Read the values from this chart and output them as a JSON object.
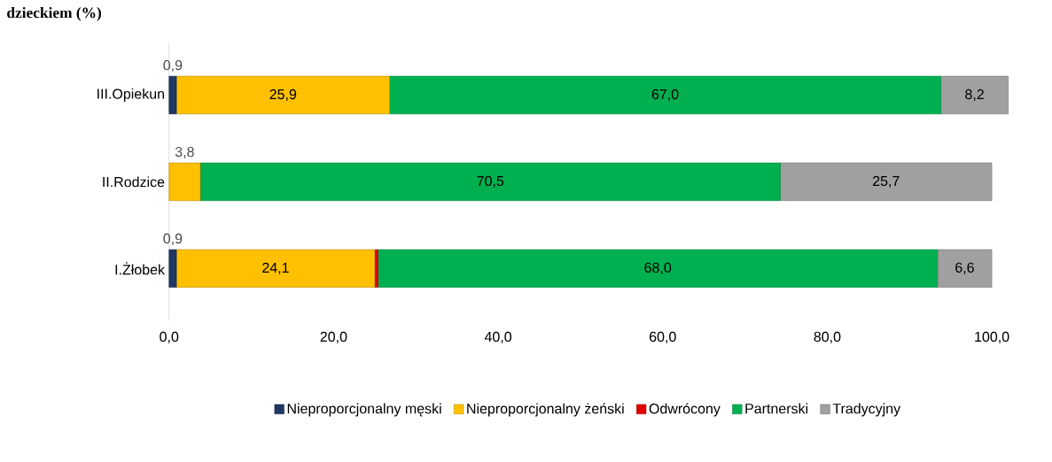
{
  "chart_data": {
    "type": "bar",
    "orientation": "horizontal",
    "stacked": true,
    "title": "dzieckiem (%)",
    "categories": [
      "III.Opiekun",
      "II.Rodzice",
      "I.Żłobek"
    ],
    "series": [
      {
        "name": "Nieproporcjonalny męski",
        "color": "#1f3864",
        "values": [
          0.9,
          null,
          0.9
        ],
        "value_labels": [
          "0,9",
          null,
          "0,9"
        ]
      },
      {
        "name": "Nieproporcjonalny żeński",
        "color": "#ffc000",
        "values": [
          25.9,
          3.8,
          24.1
        ],
        "value_labels": [
          "25,9",
          "3,8",
          "24,1"
        ]
      },
      {
        "name": "Odwrócony",
        "color": "#e00000",
        "values": [
          null,
          null,
          0.4
        ],
        "value_labels": [
          null,
          null,
          null
        ]
      },
      {
        "name": "Partnerski",
        "color": "#00b050",
        "values": [
          67.0,
          70.5,
          68.0
        ],
        "value_labels": [
          "67,0",
          "70,5",
          "68,0"
        ]
      },
      {
        "name": "Tradycyjny",
        "color": "#a0a0a0",
        "values": [
          8.2,
          25.7,
          6.6
        ],
        "value_labels": [
          "8,2",
          "25,7",
          "6,6"
        ]
      }
    ],
    "xlim": [
      0,
      102
    ],
    "xticks": [
      {
        "value": 0,
        "label": "0,0"
      },
      {
        "value": 20,
        "label": "20,0"
      },
      {
        "value": 40,
        "label": "40,0"
      },
      {
        "value": 60,
        "label": "60,0"
      },
      {
        "value": 80,
        "label": "80,0"
      },
      {
        "value": 100,
        "label": "100,0"
      }
    ],
    "grid": false,
    "legend": "bottom"
  }
}
